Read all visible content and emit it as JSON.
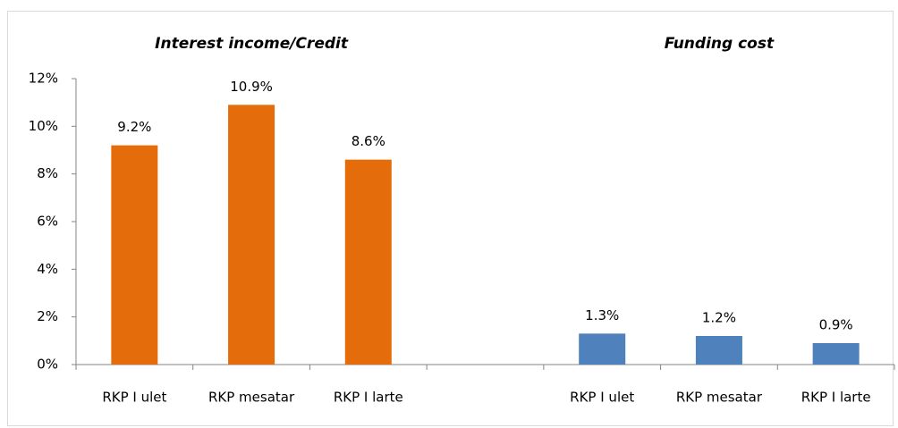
{
  "chart_data": {
    "type": "bar",
    "categories": [
      "RKP I ulet",
      "RKP mesatar",
      "RKP I larte",
      null,
      "RKP I ulet",
      "RKP mesatar",
      "RKP I larte"
    ],
    "series": [
      {
        "name": "Interest income/Credit",
        "color": "#e46c0a",
        "values": [
          9.2,
          10.9,
          8.6,
          null,
          null,
          null,
          null
        ],
        "value_labels": [
          "9.2%",
          "10.9%",
          "8.6%",
          null,
          null,
          null,
          null
        ]
      },
      {
        "name": "Funding cost",
        "color": "#4f81bd",
        "values": [
          null,
          null,
          null,
          null,
          1.3,
          1.2,
          0.9
        ],
        "value_labels": [
          null,
          null,
          null,
          null,
          "1.3%",
          "1.2%",
          "0.9%"
        ]
      }
    ],
    "ylim": [
      0,
      12
    ],
    "yticks": [
      {
        "value": 0,
        "label": "0%"
      },
      {
        "value": 2,
        "label": "2%"
      },
      {
        "value": 4,
        "label": "4%"
      },
      {
        "value": 6,
        "label": "6%"
      },
      {
        "value": 8,
        "label": "8%"
      },
      {
        "value": 10,
        "label": "10%"
      },
      {
        "value": 12,
        "label": "12%"
      }
    ]
  }
}
